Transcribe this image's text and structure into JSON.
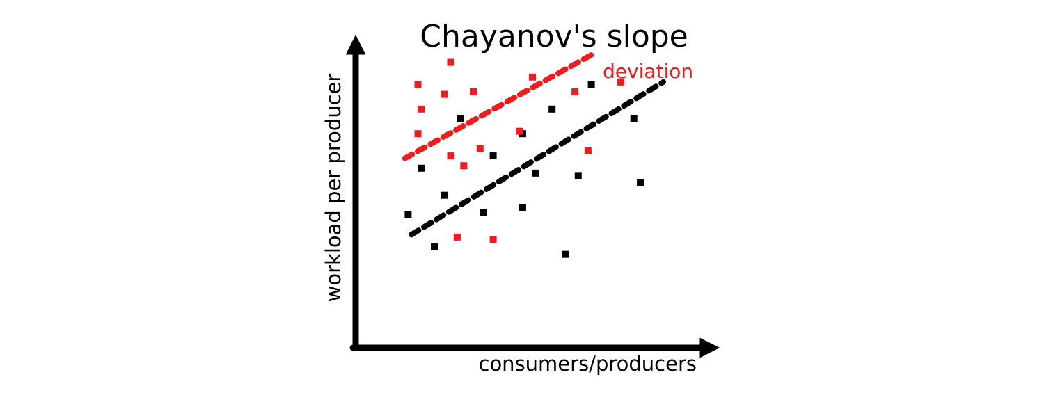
{
  "chart_data": {
    "type": "scatter",
    "title": "Chayanov's slope",
    "xlabel": "consumers/producers",
    "ylabel": "workload per producer",
    "annotation": "deviation",
    "xlim": [
      0,
      10
    ],
    "ylim": [
      0,
      10
    ],
    "grid": false,
    "colors": {
      "axis": "#000000",
      "black_series": "#000000",
      "red_series": "#ee1c1c"
    },
    "series": [
      {
        "color": "black",
        "points": [
          [
            1.2,
            3.7
          ],
          [
            1.6,
            5.6
          ],
          [
            2.3,
            4.5
          ],
          [
            2.0,
            2.4
          ],
          [
            2.8,
            7.6
          ],
          [
            3.5,
            3.8
          ],
          [
            3.8,
            6.1
          ],
          [
            4.7,
            4.0
          ],
          [
            4.7,
            7.0
          ],
          [
            5.1,
            5.4
          ],
          [
            5.6,
            8.0
          ],
          [
            6.0,
            2.1
          ],
          [
            6.4,
            5.3
          ],
          [
            6.8,
            9.0
          ],
          [
            8.1,
            7.6
          ],
          [
            8.3,
            5.0
          ]
        ]
      },
      {
        "color": "red",
        "points": [
          [
            1.5,
            9.0
          ],
          [
            1.6,
            8.0
          ],
          [
            1.5,
            7.0
          ],
          [
            2.3,
            8.6
          ],
          [
            2.5,
            9.9
          ],
          [
            2.5,
            6.1
          ],
          [
            3.2,
            8.7
          ],
          [
            3.4,
            6.4
          ],
          [
            2.9,
            5.7
          ],
          [
            4.6,
            7.1
          ],
          [
            5.0,
            9.3
          ],
          [
            6.3,
            8.7
          ],
          [
            6.7,
            6.3
          ],
          [
            7.7,
            9.1
          ],
          [
            2.7,
            2.8
          ],
          [
            3.8,
            2.7
          ]
        ]
      }
    ],
    "trend_lines": [
      {
        "color": "black",
        "style": "dashed",
        "from": [
          1.3,
          2.9
        ],
        "to": [
          9.0,
          9.1
        ]
      },
      {
        "color": "red",
        "style": "dashed",
        "from": [
          1.1,
          6.0
        ],
        "to": [
          6.8,
          10.2
        ]
      }
    ]
  }
}
